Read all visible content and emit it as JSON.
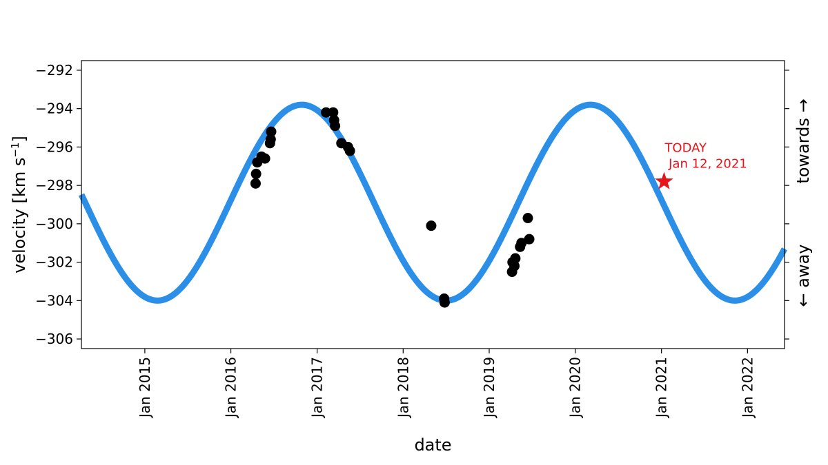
{
  "chart_data": {
    "type": "scatter",
    "xlabel": "date",
    "ylabel": "velocity [km s⁻¹]",
    "ylabel_parts": {
      "main": "velocity [km s",
      "sup": "−1",
      "close": "]"
    },
    "right_axis": {
      "top_label": "towards →",
      "bottom_label": "← away"
    },
    "x_range": [
      "2014-04-07",
      "2022-06-07"
    ],
    "y_range": [
      -306.5,
      -291.5
    ],
    "x_ticks": [
      {
        "date": "2015-01-01",
        "label": "Jan 2015"
      },
      {
        "date": "2016-01-01",
        "label": "Jan 2016"
      },
      {
        "date": "2017-01-01",
        "label": "Jan 2017"
      },
      {
        "date": "2018-01-01",
        "label": "Jan 2018"
      },
      {
        "date": "2019-01-01",
        "label": "Jan 2019"
      },
      {
        "date": "2020-01-01",
        "label": "Jan 2020"
      },
      {
        "date": "2021-01-01",
        "label": "Jan 2021"
      },
      {
        "date": "2022-01-01",
        "label": "Jan 2022"
      }
    ],
    "y_ticks": [
      {
        "value": -292,
        "label": "−292"
      },
      {
        "value": -294,
        "label": "−294"
      },
      {
        "value": -296,
        "label": "−296"
      },
      {
        "value": -298,
        "label": "−298"
      },
      {
        "value": -300,
        "label": "−300"
      },
      {
        "value": -302,
        "label": "−302"
      },
      {
        "value": -304,
        "label": "−304"
      },
      {
        "value": -306,
        "label": "−306"
      }
    ],
    "grid": false,
    "series": [
      {
        "kind": "model-curve",
        "color": "#2b8fe8",
        "shape": "sinusoid",
        "mean": -298.9,
        "amplitude": 5.1,
        "period_days": 1225,
        "peak_date": "2016-10-28"
      },
      {
        "kind": "observations",
        "color": "#000000",
        "points": [
          {
            "x": "2016-04-15",
            "y": -297.9
          },
          {
            "x": "2016-04-17",
            "y": -297.4
          },
          {
            "x": "2016-04-22",
            "y": -296.8
          },
          {
            "x": "2016-05-10",
            "y": -296.5
          },
          {
            "x": "2016-05-25",
            "y": -296.6
          },
          {
            "x": "2016-06-15",
            "y": -295.8
          },
          {
            "x": "2016-06-18",
            "y": -295.6
          },
          {
            "x": "2016-06-20",
            "y": -295.2
          },
          {
            "x": "2017-02-08",
            "y": -294.2
          },
          {
            "x": "2017-03-10",
            "y": -294.2
          },
          {
            "x": "2017-03-14",
            "y": -294.6
          },
          {
            "x": "2017-03-18",
            "y": -294.9
          },
          {
            "x": "2017-04-14",
            "y": -295.8
          },
          {
            "x": "2017-05-12",
            "y": -296.0
          },
          {
            "x": "2017-05-20",
            "y": -296.2
          },
          {
            "x": "2018-04-30",
            "y": -300.1
          },
          {
            "x": "2018-06-24",
            "y": -303.9
          },
          {
            "x": "2018-06-26",
            "y": -304.1
          },
          {
            "x": "2019-04-08",
            "y": -302.5
          },
          {
            "x": "2019-04-10",
            "y": -302.0
          },
          {
            "x": "2019-04-18",
            "y": -302.2
          },
          {
            "x": "2019-04-22",
            "y": -301.8
          },
          {
            "x": "2019-05-12",
            "y": -301.2
          },
          {
            "x": "2019-05-18",
            "y": -301.0
          },
          {
            "x": "2019-06-14",
            "y": -299.7
          },
          {
            "x": "2019-06-20",
            "y": -300.8
          }
        ]
      }
    ],
    "today_marker": {
      "x": "2021-01-12",
      "y": -297.8,
      "color": "#e8141c",
      "label_line1": "TODAY",
      "label_line2": " Jan 12, 2021"
    }
  }
}
